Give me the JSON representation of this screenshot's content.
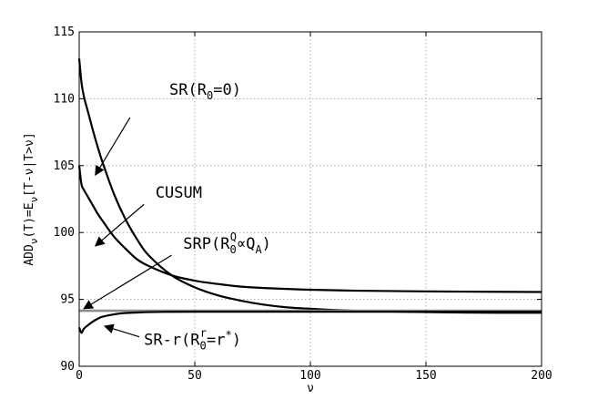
{
  "chart_data": {
    "type": "line",
    "xlabel": "ν",
    "ylabel": "ADD_ν(T) = E_ν[T-ν | T>ν]",
    "xlim": [
      0,
      200
    ],
    "ylim": [
      90,
      115
    ],
    "x_ticks": [
      0,
      50,
      100,
      150,
      200
    ],
    "y_ticks": [
      90,
      95,
      100,
      105,
      110,
      115
    ],
    "grid": true,
    "x": [
      0,
      1,
      2,
      4,
      6,
      8,
      10,
      15,
      20,
      25,
      30,
      40,
      50,
      60,
      70,
      80,
      90,
      100,
      120,
      150,
      180,
      200
    ],
    "series": [
      {
        "name": "SR(R0=0)",
        "color": "#000000",
        "values": [
          113.0,
          111.2,
          110.2,
          108.9,
          107.6,
          106.4,
          105.3,
          102.9,
          101.0,
          99.5,
          98.3,
          96.8,
          95.9,
          95.3,
          94.9,
          94.6,
          94.4,
          94.3,
          94.15,
          94.05,
          94.0,
          94.0
        ]
      },
      {
        "name": "CUSUM",
        "color": "#000000",
        "values": [
          105.0,
          103.6,
          103.2,
          102.6,
          102.0,
          101.4,
          100.9,
          99.7,
          98.8,
          98.0,
          97.5,
          96.8,
          96.4,
          96.15,
          95.95,
          95.85,
          95.78,
          95.72,
          95.65,
          95.6,
          95.57,
          95.55
        ]
      },
      {
        "name": "SRP(R0^Q∝Q_A)",
        "color": "#8c8c8c",
        "values": [
          94.15,
          94.15,
          94.15,
          94.15,
          94.15,
          94.15,
          94.15,
          94.15,
          94.15,
          94.15,
          94.15,
          94.15,
          94.15,
          94.15,
          94.15,
          94.15,
          94.15,
          94.15,
          94.15,
          94.15,
          94.15,
          94.15
        ]
      },
      {
        "name": "SR-r(R0^r=r*)",
        "color": "#000000",
        "values": [
          92.9,
          92.5,
          92.8,
          93.1,
          93.35,
          93.55,
          93.7,
          93.88,
          93.98,
          94.02,
          94.05,
          94.07,
          94.08,
          94.08,
          94.08,
          94.08,
          94.08,
          94.08,
          94.08,
          94.08,
          94.08,
          94.08
        ]
      }
    ],
    "annotations": [
      {
        "main": "SR(R",
        "sub": "0",
        "sup": "",
        "tail": "=0)",
        "text_at": [
          39,
          110.3
        ],
        "arrow_from": [
          22,
          108.6
        ],
        "arrow_to": [
          7,
          104.3
        ]
      },
      {
        "main": "CUSUM",
        "sub": "",
        "sup": "",
        "tail": "",
        "text_at": [
          33,
          102.6
        ],
        "arrow_from": [
          28,
          102.1
        ],
        "arrow_to": [
          7,
          99.0
        ]
      },
      {
        "main": "SRP(R",
        "sub": "0",
        "sup": "Q",
        "tail": "∝Q",
        "sub2": "A",
        "tail2": ")",
        "text_at": [
          45,
          98.8
        ],
        "arrow_from": [
          40,
          98.3
        ],
        "arrow_to": [
          2,
          94.3
        ]
      },
      {
        "main": "SR-r(R",
        "sub": "0",
        "sup": "r",
        "tail": "=r",
        "sup2": "*",
        "tail2": ")",
        "text_at": [
          28,
          91.6
        ],
        "arrow_from": [
          26,
          92.2
        ],
        "arrow_to": [
          11,
          93.0
        ]
      }
    ]
  }
}
